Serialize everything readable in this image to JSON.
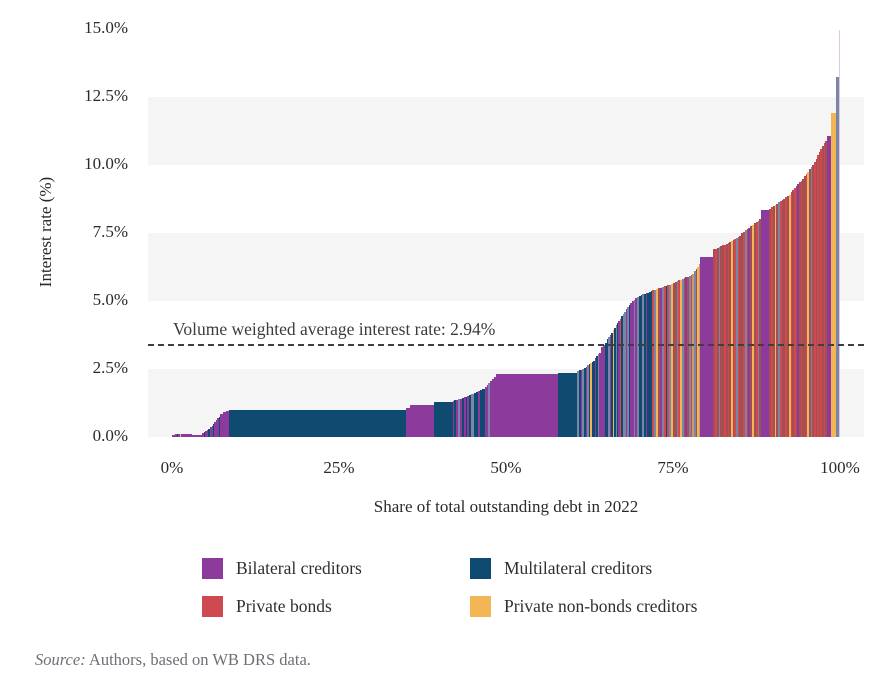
{
  "chart_data": {
    "type": "bar",
    "subtype": "sorted-variable-width-interest-rate-distribution",
    "title": "",
    "xlabel": "Share of total outstanding debt in 2022",
    "ylabel": "Interest rate (%)",
    "xlim": [
      0,
      100
    ],
    "ylim": [
      0,
      15
    ],
    "x_ticks": [
      {
        "label": "0%",
        "value": 0
      },
      {
        "label": "25%",
        "value": 25
      },
      {
        "label": "50%",
        "value": 50
      },
      {
        "label": "75%",
        "value": 75
      },
      {
        "label": "100%",
        "value": 100
      }
    ],
    "y_ticks": [
      {
        "label": "0.0%",
        "value": 0
      },
      {
        "label": "2.5%",
        "value": 2.5
      },
      {
        "label": "5.0%",
        "value": 5
      },
      {
        "label": "7.5%",
        "value": 7.5
      },
      {
        "label": "10.0%",
        "value": 10
      },
      {
        "label": "12.5%",
        "value": 12.5
      },
      {
        "label": "15.0%",
        "value": 15
      }
    ],
    "grid_bands": [
      [
        0,
        2.5
      ],
      [
        5,
        7.5
      ],
      [
        10,
        12.5
      ]
    ],
    "band_color": "#f5f5f5",
    "average_line": {
      "label": "Volume weighted average interest rate: 2.94%",
      "value_label": "2.94%",
      "line_position_rate": 3.42
    },
    "palette": {
      "b": "#8c3a9b",
      "m": "#0f4a70",
      "p": "#cf4a50",
      "y": "#f2b754",
      "sl": "#7b85a6",
      "mr": "#a64f52",
      "tn": "#c59b72",
      "pk": "#dfc9de"
    },
    "legend": [
      {
        "label": "Bilateral creditors",
        "color": "#8c3a9b",
        "key": "b"
      },
      {
        "label": "Multilateral creditors",
        "color": "#0f4a70",
        "key": "m"
      },
      {
        "label": "Private bonds",
        "color": "#cf4a50",
        "key": "p"
      },
      {
        "label": "Private non-bonds creditors",
        "color": "#f2b754",
        "key": "y"
      }
    ],
    "segments": [
      {
        "w": 0.4,
        "v0": 0.06,
        "v1": 0.06,
        "n": 1,
        "c": [
          "b"
        ]
      },
      {
        "w": 1.5,
        "v0": 0.1,
        "v1": 0.1,
        "n": 8,
        "c": [
          "b",
          "b",
          "m",
          "b",
          "y",
          "b"
        ]
      },
      {
        "w": 1.0,
        "v0": 0.1,
        "v1": 0.1,
        "n": 1,
        "c": [
          "b"
        ]
      },
      {
        "w": 1.6,
        "v0": 0.07,
        "v1": 0.07,
        "n": 2,
        "c": [
          "b"
        ]
      },
      {
        "w": 1.2,
        "v0": 0.15,
        "v1": 0.3,
        "n": 5,
        "c": [
          "b",
          "m",
          "b"
        ]
      },
      {
        "w": 1.5,
        "v0": 0.35,
        "v1": 0.75,
        "n": 7,
        "c": [
          "b",
          "b",
          "m",
          "b"
        ]
      },
      {
        "w": 1.3,
        "v0": 0.85,
        "v1": 0.97,
        "n": 3,
        "c": [
          "b"
        ]
      },
      {
        "w": 26.6,
        "v0": 1.0,
        "v1": 1.0,
        "n": 1,
        "c": [
          "m"
        ]
      },
      {
        "w": 0.5,
        "v0": 1.05,
        "v1": 1.05,
        "n": 2,
        "c": [
          "b"
        ]
      },
      {
        "w": 3.6,
        "v0": 1.18,
        "v1": 1.18,
        "n": 1,
        "c": [
          "b"
        ]
      },
      {
        "w": 2.8,
        "v0": 1.27,
        "v1": 1.27,
        "n": 1,
        "c": [
          "m"
        ]
      },
      {
        "w": 2.5,
        "v0": 1.32,
        "v1": 1.5,
        "n": 9,
        "c": [
          "b",
          "m",
          "b",
          "sl",
          "b",
          "m"
        ]
      },
      {
        "w": 2.3,
        "v0": 1.55,
        "v1": 1.75,
        "n": 7,
        "c": [
          "m",
          "sl",
          "m",
          "m",
          "b",
          "m"
        ]
      },
      {
        "w": 1.7,
        "v0": 1.85,
        "v1": 2.2,
        "n": 6,
        "c": [
          "b",
          "b",
          "sl",
          "b"
        ]
      },
      {
        "w": 9.3,
        "v0": 2.3,
        "v1": 2.3,
        "n": 1,
        "c": [
          "b"
        ]
      },
      {
        "w": 2.9,
        "v0": 2.37,
        "v1": 2.37,
        "n": 1,
        "c": [
          "m"
        ]
      },
      {
        "w": 1.0,
        "v0": 2.42,
        "v1": 2.5,
        "n": 4,
        "c": [
          "sl",
          "m",
          "b"
        ]
      },
      {
        "w": 1.6,
        "v0": 2.55,
        "v1": 2.8,
        "n": 7,
        "c": [
          "m",
          "b",
          "sl",
          "m",
          "y",
          "m"
        ]
      },
      {
        "w": 0.9,
        "v0": 2.9,
        "v1": 3.1,
        "n": 4,
        "c": [
          "b",
          "m",
          "sl"
        ]
      },
      {
        "w": 0.9,
        "v0": 3.3,
        "v1": 3.45,
        "n": 3,
        "c": [
          "b",
          "b",
          "m"
        ]
      },
      {
        "w": 1.3,
        "v0": 3.6,
        "v1": 4.0,
        "n": 6,
        "c": [
          "m",
          "sl",
          "b",
          "m",
          "y"
        ]
      },
      {
        "w": 1.5,
        "v0": 4.1,
        "v1": 4.6,
        "n": 7,
        "c": [
          "sl",
          "m",
          "b",
          "p",
          "m",
          "sl"
        ]
      },
      {
        "w": 1.2,
        "v0": 4.7,
        "v1": 5.0,
        "n": 5,
        "c": [
          "b",
          "sl",
          "m",
          "b"
        ]
      },
      {
        "w": 0.8,
        "v0": 5.05,
        "v1": 5.15,
        "n": 3,
        "c": [
          "sl",
          "b"
        ]
      },
      {
        "w": 2.0,
        "v0": 5.2,
        "v1": 5.35,
        "n": 8,
        "c": [
          "m",
          "m",
          "sl",
          "m",
          "b",
          "m"
        ]
      },
      {
        "w": 3.4,
        "v0": 5.4,
        "v1": 5.65,
        "n": 12,
        "c": [
          "p",
          "sl",
          "y",
          "mr",
          "b",
          "sl",
          "p",
          "m"
        ]
      },
      {
        "w": 2.6,
        "v0": 5.7,
        "v1": 5.95,
        "n": 10,
        "c": [
          "mr",
          "sl",
          "p",
          "y",
          "sl",
          "mr",
          "b"
        ]
      },
      {
        "w": 1.2,
        "v0": 6.0,
        "v1": 6.35,
        "n": 5,
        "c": [
          "tn",
          "sl",
          "mr",
          "y"
        ]
      },
      {
        "w": 1.9,
        "v0": 6.62,
        "v1": 6.65,
        "n": 1,
        "c": [
          "b"
        ]
      },
      {
        "w": 2.2,
        "v0": 6.9,
        "v1": 7.1,
        "n": 8,
        "c": [
          "mr",
          "p",
          "mr",
          "sl",
          "mr"
        ]
      },
      {
        "w": 2.0,
        "v0": 7.15,
        "v1": 7.4,
        "n": 8,
        "c": [
          "p",
          "mr",
          "y",
          "mr",
          "p",
          "sl"
        ]
      },
      {
        "w": 3.0,
        "v0": 7.5,
        "v1": 8.0,
        "n": 11,
        "c": [
          "mr",
          "p",
          "sl",
          "mr",
          "b",
          "mr",
          "y"
        ]
      },
      {
        "w": 1.2,
        "v0": 8.35,
        "v1": 8.4,
        "n": 1,
        "c": [
          "b"
        ]
      },
      {
        "w": 3.2,
        "v0": 8.4,
        "v1": 8.9,
        "n": 12,
        "c": [
          "mr",
          "p",
          "mr",
          "y",
          "mr",
          "sl",
          "p",
          "mr"
        ]
      },
      {
        "w": 2.0,
        "v0": 9.0,
        "v1": 9.5,
        "n": 8,
        "c": [
          "p",
          "mr",
          "p",
          "mr",
          "b",
          "mr"
        ]
      },
      {
        "w": 1.5,
        "v0": 9.6,
        "v1": 10.0,
        "n": 6,
        "c": [
          "mr",
          "p",
          "y",
          "mr",
          "sl"
        ]
      },
      {
        "w": 1.2,
        "v0": 10.1,
        "v1": 10.6,
        "n": 5,
        "c": [
          "p",
          "mr",
          "p",
          "mr"
        ]
      },
      {
        "w": 0.7,
        "v0": 10.7,
        "v1": 10.9,
        "n": 3,
        "c": [
          "mr",
          "p"
        ]
      },
      {
        "w": 0.6,
        "v0": 11.05,
        "v1": 11.1,
        "n": 1,
        "c": [
          "b"
        ]
      },
      {
        "w": 0.8,
        "v0": 11.9,
        "v1": 11.95,
        "n": 1,
        "c": [
          "y"
        ]
      },
      {
        "w": 0.45,
        "v0": 13.25,
        "v1": 13.25,
        "n": 1,
        "c": [
          "sl"
        ]
      },
      {
        "w": 0.15,
        "v0": 14.95,
        "v1": 14.95,
        "n": 1,
        "c": [
          "pk"
        ]
      }
    ]
  },
  "source_note": {
    "prefix": "Source:",
    "text": " Authors, based on WB DRS data."
  }
}
